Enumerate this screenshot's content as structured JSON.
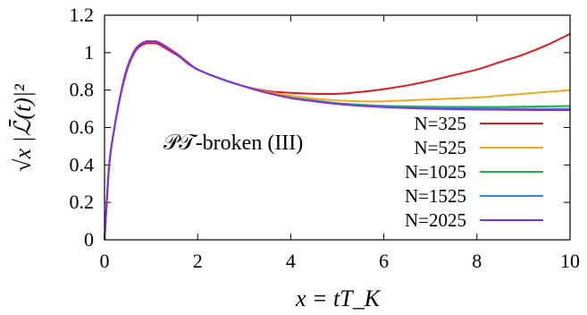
{
  "chart_data": {
    "type": "line",
    "xlabel": "x = tT_K",
    "ylabel": "√x |ℒ̄(t)|²",
    "xlim": [
      0,
      10
    ],
    "ylim": [
      0,
      1.2
    ],
    "x_ticks": [
      "0",
      "2",
      "4",
      "6",
      "8",
      "10"
    ],
    "y_ticks": [
      "0",
      "0.2",
      "0.4",
      "0.6",
      "0.8",
      "1",
      "1.2"
    ],
    "annotation": "𝒫𝒯-broken (III)",
    "legend_position": "right",
    "grid": false,
    "x": [
      0,
      0.1,
      0.2,
      0.3,
      0.4,
      0.5,
      0.6,
      0.7,
      0.8,
      0.9,
      1.0,
      1.1,
      1.2,
      1.4,
      1.6,
      1.8,
      2.0,
      2.5,
      3.0,
      3.5,
      4.0,
      4.5,
      5.0,
      5.5,
      6.0,
      6.5,
      7.0,
      7.5,
      8.0,
      8.5,
      9.0,
      9.5,
      10.0
    ],
    "series": [
      {
        "name": "N=325",
        "color": "#e4181c",
        "values": [
          0,
          0.4,
          0.58,
          0.72,
          0.83,
          0.92,
          0.98,
          1.02,
          1.04,
          1.05,
          1.05,
          1.05,
          1.04,
          1.01,
          0.98,
          0.94,
          0.91,
          0.86,
          0.82,
          0.795,
          0.785,
          0.78,
          0.78,
          0.79,
          0.805,
          0.825,
          0.85,
          0.88,
          0.91,
          0.95,
          0.99,
          1.04,
          1.1
        ]
      },
      {
        "name": "N=525",
        "color": "#f2a91e",
        "values": [
          0,
          0.4,
          0.58,
          0.72,
          0.84,
          0.93,
          0.99,
          1.03,
          1.05,
          1.06,
          1.06,
          1.06,
          1.05,
          1.02,
          0.985,
          0.945,
          0.91,
          0.86,
          0.82,
          0.79,
          0.77,
          0.755,
          0.745,
          0.74,
          0.74,
          0.745,
          0.75,
          0.755,
          0.76,
          0.77,
          0.78,
          0.79,
          0.8
        ]
      },
      {
        "name": "N=1025",
        "color": "#1ab34a",
        "values": [
          0,
          0.4,
          0.58,
          0.72,
          0.84,
          0.93,
          0.99,
          1.03,
          1.05,
          1.06,
          1.06,
          1.06,
          1.05,
          1.02,
          0.985,
          0.945,
          0.91,
          0.86,
          0.82,
          0.785,
          0.76,
          0.745,
          0.73,
          0.722,
          0.716,
          0.713,
          0.711,
          0.71,
          0.71,
          0.71,
          0.711,
          0.713,
          0.715
        ]
      },
      {
        "name": "N=1525",
        "color": "#2a8fe0",
        "values": [
          0,
          0.4,
          0.58,
          0.72,
          0.84,
          0.93,
          0.99,
          1.03,
          1.05,
          1.06,
          1.06,
          1.06,
          1.05,
          1.02,
          0.985,
          0.945,
          0.91,
          0.86,
          0.82,
          0.785,
          0.758,
          0.742,
          0.728,
          0.718,
          0.712,
          0.707,
          0.704,
          0.702,
          0.701,
          0.7,
          0.7,
          0.7,
          0.7
        ]
      },
      {
        "name": "N=2025",
        "color": "#8a2be2",
        "values": [
          0,
          0.4,
          0.58,
          0.72,
          0.84,
          0.93,
          0.99,
          1.03,
          1.05,
          1.06,
          1.06,
          1.06,
          1.05,
          1.02,
          0.985,
          0.945,
          0.91,
          0.86,
          0.82,
          0.785,
          0.757,
          0.74,
          0.726,
          0.716,
          0.709,
          0.704,
          0.7,
          0.698,
          0.696,
          0.695,
          0.694,
          0.693,
          0.693
        ]
      }
    ]
  }
}
